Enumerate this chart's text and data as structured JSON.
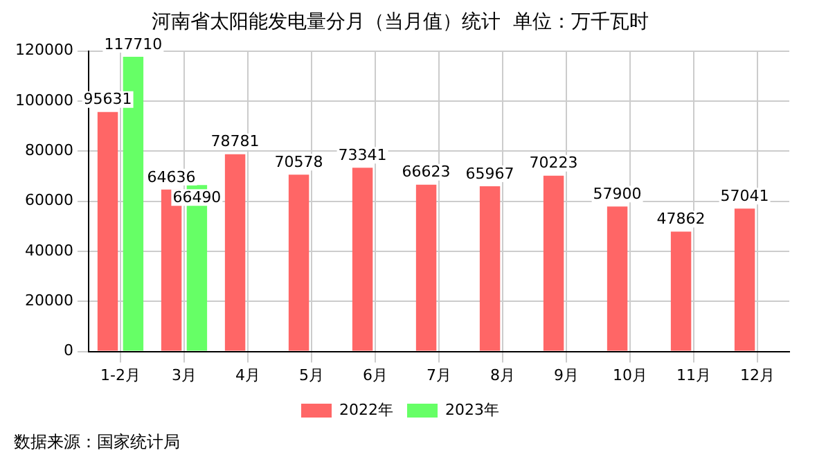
{
  "chart_data": {
    "type": "bar",
    "title": "河南省太阳能发电量分月（当月值）统计  单位：万千瓦时",
    "categories": [
      "1-2月",
      "3月",
      "4月",
      "5月",
      "6月",
      "7月",
      "8月",
      "9月",
      "10月",
      "11月",
      "12月"
    ],
    "series": [
      {
        "name": "2022年",
        "color": "#ff6666",
        "values": [
          95631,
          64636,
          78781,
          70578,
          73341,
          66623,
          65967,
          70223,
          57900,
          47862,
          57041
        ]
      },
      {
        "name": "2023年",
        "color": "#66ff66",
        "values": [
          117710,
          66490,
          null,
          null,
          null,
          null,
          null,
          null,
          null,
          null,
          null
        ]
      }
    ],
    "ylim": [
      0,
      120000
    ],
    "yticks": [
      0,
      20000,
      40000,
      60000,
      80000,
      100000,
      120000
    ],
    "grid": true,
    "legend": "bottom",
    "data_labels": true,
    "annotations": [
      "数据来源：国家统计局"
    ]
  }
}
